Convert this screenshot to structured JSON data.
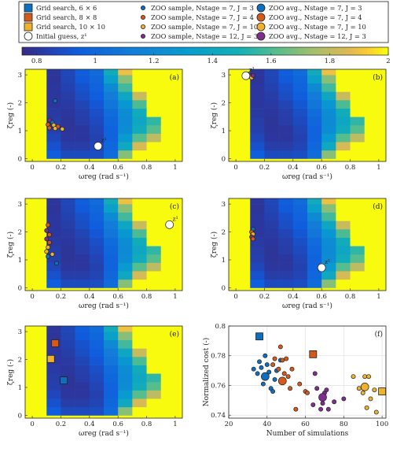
{
  "legend": {
    "entries": [
      {
        "label": "Grid search, 6 × 6",
        "marker": "square",
        "color": "#0f6fbf",
        "size": "large"
      },
      {
        "label": "Grid search, 8 × 8",
        "marker": "square",
        "color": "#d45a1a",
        "size": "large"
      },
      {
        "label": "Grid search, 10 × 10",
        "marker": "square",
        "color": "#eeb22e",
        "size": "large"
      },
      {
        "label": "Initial guess, z¹",
        "marker": "circle",
        "color": "#ffffff",
        "size": "large"
      },
      {
        "label": "ZOO sample, Nstage = 7, J = 3",
        "marker": "circle",
        "color": "#0f6fbf",
        "size": "small"
      },
      {
        "label": "ZOO sample, Nstage = 7, J = 4",
        "marker": "circle",
        "color": "#d45a1a",
        "size": "small"
      },
      {
        "label": "ZOO sample, Nstage = 7, J = 10",
        "marker": "circle",
        "color": "#eeb22e",
        "size": "small"
      },
      {
        "label": "ZOO sample, Nstage = 12, J = 3",
        "marker": "circle",
        "color": "#7e2f8e",
        "size": "small"
      },
      {
        "label": "ZOO avg., Nstage = 7, J = 3",
        "marker": "circle",
        "color": "#0f6fbf",
        "size": "large"
      },
      {
        "label": "ZOO avg., Nstage = 7, J = 4",
        "marker": "circle",
        "color": "#d45a1a",
        "size": "large"
      },
      {
        "label": "ZOO avg., Nstage = 7, J = 10",
        "marker": "circle",
        "color": "#eeb22e",
        "size": "large"
      },
      {
        "label": "ZOO avg., Nstage = 12, J = 3",
        "marker": "circle",
        "color": "#7e2f8e",
        "size": "large"
      }
    ]
  },
  "colorbar": {
    "ticks": [
      "0.8",
      "1",
      "1.2",
      "1.4",
      "1.6",
      "1.8",
      "2"
    ],
    "range": [
      0.75,
      2.0
    ],
    "colormap": "parula"
  },
  "chart_data": [
    {
      "type": "heatmap",
      "panel": "(a)",
      "xlabel": "ωreg (rad s⁻¹)",
      "ylabel": "ζreg (-)",
      "xlim": [
        -0.05,
        1.05
      ],
      "ylim": [
        -0.1,
        3.2
      ],
      "xticks": [
        "0",
        "0.2",
        "0.4",
        "0.6",
        "0.8",
        "1"
      ],
      "yticks": [
        "0",
        "1",
        "2",
        "3"
      ],
      "points": [
        {
          "x": 0.16,
          "y": 2.07,
          "color": "#0f6fbf",
          "size": "small"
        },
        {
          "x": 0.12,
          "y": 1.38,
          "color": "#7e2f8e",
          "size": "small"
        },
        {
          "x": 0.14,
          "y": 1.3,
          "color": "#0f6fbf",
          "size": "small"
        },
        {
          "x": 0.11,
          "y": 1.22,
          "color": "#d45a1a",
          "size": "small"
        },
        {
          "x": 0.15,
          "y": 1.2,
          "color": "#eeb22e",
          "size": "small"
        },
        {
          "x": 0.18,
          "y": 1.15,
          "color": "#d45a1a",
          "size": "small"
        },
        {
          "x": 0.12,
          "y": 1.1,
          "color": "#d45a1a",
          "size": "small"
        },
        {
          "x": 0.16,
          "y": 1.08,
          "color": "#eeb22e",
          "size": "small"
        },
        {
          "x": 0.21,
          "y": 1.06,
          "color": "#eeb22e",
          "size": "small"
        },
        {
          "x": 0.46,
          "y": 0.45,
          "color": "#ffffff",
          "size": "large",
          "label": "z¹"
        }
      ]
    },
    {
      "type": "heatmap",
      "panel": "(b)",
      "xlabel": "ωreg (rad s⁻¹)",
      "ylabel": "ζreg (-)",
      "xlim": [
        -0.05,
        1.05
      ],
      "ylim": [
        -0.1,
        3.2
      ],
      "xticks": [
        "0",
        "0.2",
        "0.4",
        "0.6",
        "0.8",
        "1"
      ],
      "yticks": [
        "0",
        "1",
        "2",
        "3"
      ],
      "points": [
        {
          "x": 0.09,
          "y": 3.03,
          "color": "#0f6fbf",
          "size": "small"
        },
        {
          "x": 0.1,
          "y": 2.95,
          "color": "#d45a1a",
          "size": "small"
        },
        {
          "x": 0.11,
          "y": 2.9,
          "color": "#eeb22e",
          "size": "small"
        },
        {
          "x": 0.12,
          "y": 2.98,
          "color": "#7e2f8e",
          "size": "small"
        },
        {
          "x": 0.07,
          "y": 2.97,
          "color": "#ffffff",
          "size": "large",
          "label": "z¹"
        }
      ]
    },
    {
      "type": "heatmap",
      "panel": "(c)",
      "xlabel": "ωreg (rad s⁻¹)",
      "ylabel": "ζreg (-)",
      "xlim": [
        -0.05,
        1.05
      ],
      "ylim": [
        -0.1,
        3.2
      ],
      "xticks": [
        "0",
        "0.2",
        "0.4",
        "0.6",
        "0.8",
        "1"
      ],
      "yticks": [
        "0",
        "1",
        "2",
        "3"
      ],
      "points": [
        {
          "x": 0.11,
          "y": 2.25,
          "color": "#d45a1a",
          "size": "small"
        },
        {
          "x": 0.1,
          "y": 2.05,
          "color": "#7e2f8e",
          "size": "small"
        },
        {
          "x": 0.12,
          "y": 1.9,
          "color": "#d45a1a",
          "size": "small"
        },
        {
          "x": 0.1,
          "y": 1.75,
          "color": "#7e2f8e",
          "size": "small"
        },
        {
          "x": 0.12,
          "y": 1.62,
          "color": "#d45a1a",
          "size": "small"
        },
        {
          "x": 0.11,
          "y": 1.45,
          "color": "#eeb22e",
          "size": "small"
        },
        {
          "x": 0.1,
          "y": 1.3,
          "color": "#eeb22e",
          "size": "small"
        },
        {
          "x": 0.14,
          "y": 1.2,
          "color": "#eeb22e",
          "size": "small"
        },
        {
          "x": 0.11,
          "y": 1.12,
          "color": "#0f6fbf",
          "size": "small"
        },
        {
          "x": 0.17,
          "y": 0.88,
          "color": "#0f6fbf",
          "size": "small"
        },
        {
          "x": 0.96,
          "y": 2.26,
          "color": "#ffffff",
          "size": "large",
          "label": "z¹"
        }
      ]
    },
    {
      "type": "heatmap",
      "panel": "(d)",
      "xlabel": "ωreg (rad s⁻¹)",
      "ylabel": "ζreg (-)",
      "xlim": [
        -0.05,
        1.05
      ],
      "ylim": [
        -0.1,
        3.2
      ],
      "xticks": [
        "0",
        "0.2",
        "0.4",
        "0.6",
        "0.8",
        "1"
      ],
      "yticks": [
        "0",
        "1",
        "2",
        "3"
      ],
      "points": [
        {
          "x": 0.12,
          "y": 2.1,
          "color": "#0f6fbf",
          "size": "small"
        },
        {
          "x": 0.11,
          "y": 2.0,
          "color": "#d45a1a",
          "size": "small"
        },
        {
          "x": 0.12,
          "y": 1.92,
          "color": "#eeb22e",
          "size": "small"
        },
        {
          "x": 0.11,
          "y": 1.82,
          "color": "#7e2f8e",
          "size": "small"
        },
        {
          "x": 0.12,
          "y": 1.75,
          "color": "#d45a1a",
          "size": "small"
        },
        {
          "x": 0.6,
          "y": 0.72,
          "color": "#ffffff",
          "size": "large",
          "label": "z¹"
        }
      ]
    },
    {
      "type": "heatmap",
      "panel": "(e)",
      "xlabel": "ωreg (rad s⁻¹)",
      "ylabel": "ζreg (-)",
      "xlim": [
        -0.05,
        1.05
      ],
      "ylim": [
        -0.1,
        3.2
      ],
      "xticks": [
        "0",
        "0.2",
        "0.4",
        "0.6",
        "0.8",
        "1"
      ],
      "yticks": [
        "0",
        "1",
        "2",
        "3"
      ],
      "points": [
        {
          "x": 0.16,
          "y": 2.58,
          "color": "#d45a1a",
          "size": "large",
          "marker": "square"
        },
        {
          "x": 0.13,
          "y": 2.02,
          "color": "#eeb22e",
          "size": "large",
          "marker": "square"
        },
        {
          "x": 0.22,
          "y": 1.25,
          "color": "#0f6fbf",
          "size": "large",
          "marker": "square"
        }
      ]
    },
    {
      "type": "scatter",
      "panel": "(f)",
      "xlabel": "Number of simulations",
      "ylabel": "Normalized cost (-)",
      "xlim": [
        20,
        102
      ],
      "ylim": [
        0.738,
        0.8
      ],
      "xticks": [
        "20",
        "40",
        "60",
        "80",
        "100"
      ],
      "yticks": [
        "0.74",
        "0.76",
        "0.78",
        "0.8"
      ],
      "grid": true,
      "points": [
        {
          "x": 36,
          "y": 0.793,
          "color": "#0f6fbf",
          "size": "large",
          "marker": "square"
        },
        {
          "x": 64,
          "y": 0.781,
          "color": "#d45a1a",
          "size": "large",
          "marker": "square"
        },
        {
          "x": 100,
          "y": 0.756,
          "color": "#eeb22e",
          "size": "large",
          "marker": "square"
        },
        {
          "x": 39,
          "y": 0.766,
          "color": "#0f6fbf",
          "size": "large"
        },
        {
          "x": 48,
          "y": 0.763,
          "color": "#d45a1a",
          "size": "large"
        },
        {
          "x": 91,
          "y": 0.759,
          "color": "#eeb22e",
          "size": "large"
        },
        {
          "x": 69,
          "y": 0.752,
          "color": "#7e2f8e",
          "size": "large"
        },
        {
          "x": 33,
          "y": 0.771,
          "color": "#0f6fbf",
          "size": "small"
        },
        {
          "x": 35,
          "y": 0.768,
          "color": "#0f6fbf",
          "size": "small"
        },
        {
          "x": 36,
          "y": 0.776,
          "color": "#0f6fbf",
          "size": "small"
        },
        {
          "x": 37,
          "y": 0.772,
          "color": "#0f6fbf",
          "size": "small"
        },
        {
          "x": 38,
          "y": 0.761,
          "color": "#0f6fbf",
          "size": "small"
        },
        {
          "x": 39,
          "y": 0.78,
          "color": "#0f6fbf",
          "size": "small"
        },
        {
          "x": 40,
          "y": 0.774,
          "color": "#0f6fbf",
          "size": "small"
        },
        {
          "x": 41,
          "y": 0.769,
          "color": "#0f6fbf",
          "size": "small"
        },
        {
          "x": 42,
          "y": 0.758,
          "color": "#0f6fbf",
          "size": "small"
        },
        {
          "x": 43,
          "y": 0.756,
          "color": "#0f6fbf",
          "size": "small"
        },
        {
          "x": 44,
          "y": 0.764,
          "color": "#0f6fbf",
          "size": "small"
        },
        {
          "x": 45,
          "y": 0.77,
          "color": "#0f6fbf",
          "size": "small"
        },
        {
          "x": 47,
          "y": 0.777,
          "color": "#0f6fbf",
          "size": "small"
        },
        {
          "x": 43,
          "y": 0.774,
          "color": "#d45a1a",
          "size": "small"
        },
        {
          "x": 44,
          "y": 0.778,
          "color": "#d45a1a",
          "size": "small"
        },
        {
          "x": 46,
          "y": 0.771,
          "color": "#d45a1a",
          "size": "small"
        },
        {
          "x": 47,
          "y": 0.786,
          "color": "#d45a1a",
          "size": "small"
        },
        {
          "x": 48,
          "y": 0.777,
          "color": "#d45a1a",
          "size": "small"
        },
        {
          "x": 49,
          "y": 0.768,
          "color": "#d45a1a",
          "size": "small"
        },
        {
          "x": 50,
          "y": 0.778,
          "color": "#d45a1a",
          "size": "small"
        },
        {
          "x": 51,
          "y": 0.766,
          "color": "#d45a1a",
          "size": "small"
        },
        {
          "x": 52,
          "y": 0.758,
          "color": "#d45a1a",
          "size": "small"
        },
        {
          "x": 53,
          "y": 0.771,
          "color": "#d45a1a",
          "size": "small"
        },
        {
          "x": 55,
          "y": 0.744,
          "color": "#d45a1a",
          "size": "small"
        },
        {
          "x": 57,
          "y": 0.761,
          "color": "#d45a1a",
          "size": "small"
        },
        {
          "x": 60,
          "y": 0.756,
          "color": "#d45a1a",
          "size": "small"
        },
        {
          "x": 61,
          "y": 0.755,
          "color": "#d45a1a",
          "size": "small"
        },
        {
          "x": 64,
          "y": 0.747,
          "color": "#7e2f8e",
          "size": "small"
        },
        {
          "x": 65,
          "y": 0.768,
          "color": "#7e2f8e",
          "size": "small"
        },
        {
          "x": 66,
          "y": 0.758,
          "color": "#7e2f8e",
          "size": "small"
        },
        {
          "x": 68,
          "y": 0.744,
          "color": "#7e2f8e",
          "size": "small"
        },
        {
          "x": 69,
          "y": 0.748,
          "color": "#7e2f8e",
          "size": "small"
        },
        {
          "x": 70,
          "y": 0.755,
          "color": "#7e2f8e",
          "size": "small"
        },
        {
          "x": 71,
          "y": 0.757,
          "color": "#7e2f8e",
          "size": "small"
        },
        {
          "x": 72,
          "y": 0.744,
          "color": "#7e2f8e",
          "size": "small"
        },
        {
          "x": 75,
          "y": 0.749,
          "color": "#7e2f8e",
          "size": "small"
        },
        {
          "x": 80,
          "y": 0.751,
          "color": "#7e2f8e",
          "size": "small"
        },
        {
          "x": 85,
          "y": 0.766,
          "color": "#eeb22e",
          "size": "small"
        },
        {
          "x": 88,
          "y": 0.758,
          "color": "#eeb22e",
          "size": "small"
        },
        {
          "x": 90,
          "y": 0.755,
          "color": "#eeb22e",
          "size": "small"
        },
        {
          "x": 91,
          "y": 0.766,
          "color": "#eeb22e",
          "size": "small"
        },
        {
          "x": 92,
          "y": 0.745,
          "color": "#eeb22e",
          "size": "small"
        },
        {
          "x": 93,
          "y": 0.766,
          "color": "#eeb22e",
          "size": "small"
        },
        {
          "x": 94,
          "y": 0.751,
          "color": "#eeb22e",
          "size": "small"
        },
        {
          "x": 96,
          "y": 0.757,
          "color": "#eeb22e",
          "size": "small"
        },
        {
          "x": 97,
          "y": 0.742,
          "color": "#eeb22e",
          "size": "small"
        }
      ]
    }
  ],
  "cost_grid": {
    "omega": [
      0.05,
      0.15,
      0.25,
      0.35,
      0.45,
      0.55,
      0.65,
      0.75,
      0.85,
      0.95
    ],
    "zeta": [
      0.15,
      0.45,
      0.75,
      1.05,
      1.35,
      1.65,
      1.95,
      2.25,
      2.55,
      2.85,
      3.15
    ],
    "values": [
      [
        2.0,
        0.95,
        0.87,
        0.87,
        0.88,
        1.02,
        1.7,
        2.0,
        2.0,
        2.0
      ],
      [
        2.0,
        0.9,
        0.82,
        0.82,
        0.85,
        1.0,
        1.42,
        1.85,
        2.0,
        2.0
      ],
      [
        2.0,
        0.86,
        0.8,
        0.8,
        0.84,
        0.98,
        1.3,
        1.62,
        1.8,
        2.0
      ],
      [
        2.0,
        0.83,
        0.79,
        0.8,
        0.85,
        0.98,
        1.22,
        1.45,
        1.62,
        2.0
      ],
      [
        2.0,
        0.82,
        0.79,
        0.82,
        0.87,
        1.0,
        1.2,
        1.4,
        1.55,
        2.0
      ],
      [
        2.0,
        0.81,
        0.8,
        0.83,
        0.89,
        1.02,
        1.22,
        1.45,
        2.0,
        2.0
      ],
      [
        2.0,
        0.8,
        0.81,
        0.85,
        0.92,
        1.08,
        1.28,
        1.6,
        2.0,
        2.0
      ],
      [
        2.0,
        0.8,
        0.82,
        0.88,
        0.95,
        1.12,
        1.4,
        1.82,
        2.0,
        2.0
      ],
      [
        2.0,
        0.8,
        0.84,
        0.9,
        0.98,
        1.2,
        1.58,
        2.0,
        2.0,
        2.0
      ],
      [
        2.0,
        0.79,
        0.85,
        0.93,
        1.0,
        1.35,
        1.7,
        2.0,
        2.0,
        2.0
      ],
      [
        2.0,
        0.8,
        0.86,
        0.95,
        1.02,
        1.45,
        1.9,
        2.0,
        2.0,
        2.0
      ]
    ]
  }
}
